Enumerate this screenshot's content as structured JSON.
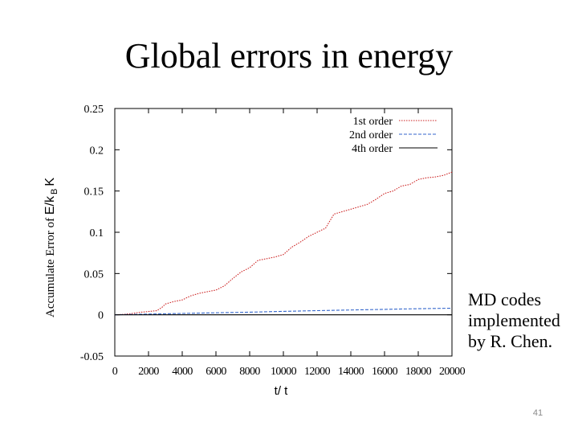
{
  "slide": {
    "title": "Global errors in energy",
    "caption_lines": [
      "MD codes",
      "implemented",
      "by R. Chen."
    ],
    "page_number": "41"
  },
  "chart_data": {
    "type": "line",
    "title": "",
    "xlabel": "t/ t",
    "ylabel_parts": [
      "Accumulate Error of ",
      "E/k",
      "B",
      "K"
    ],
    "xlim": [
      0,
      20000
    ],
    "ylim": [
      -0.05,
      0.25
    ],
    "xticks": [
      0,
      2000,
      4000,
      6000,
      8000,
      10000,
      12000,
      14000,
      16000,
      18000,
      20000
    ],
    "xtick_labels": [
      "0",
      "2000",
      "4000",
      "6000",
      "8000",
      "10000",
      "12000",
      "14000",
      "16000",
      "18000",
      "20000"
    ],
    "yticks": [
      -0.05,
      0,
      0.05,
      0.1,
      0.15,
      0.2,
      0.25
    ],
    "ytick_labels": [
      "-0.05",
      "0",
      "0.05",
      "0.1",
      "0.15",
      "0.2",
      "0.25"
    ],
    "legend_position": "top-right",
    "grid": false,
    "series": [
      {
        "name": "1st order",
        "color": "#cc2222",
        "dash": "dotted",
        "x": [
          0,
          500,
          1000,
          1500,
          2000,
          2500,
          2800,
          3000,
          3500,
          4000,
          4500,
          5000,
          5500,
          6000,
          6500,
          7000,
          7500,
          8000,
          8500,
          9000,
          9500,
          10000,
          10500,
          11000,
          11500,
          12000,
          12500,
          13000,
          13500,
          14000,
          14500,
          15000,
          15500,
          16000,
          16500,
          17000,
          17500,
          18000,
          18500,
          19000,
          19500,
          20000
        ],
        "y": [
          0,
          0.0005,
          0.0015,
          0.003,
          0.004,
          0.005,
          0.009,
          0.013,
          0.016,
          0.018,
          0.023,
          0.026,
          0.028,
          0.03,
          0.035,
          0.044,
          0.052,
          0.057,
          0.066,
          0.068,
          0.07,
          0.073,
          0.082,
          0.088,
          0.095,
          0.1,
          0.105,
          0.122,
          0.125,
          0.128,
          0.131,
          0.134,
          0.14,
          0.147,
          0.15,
          0.156,
          0.158,
          0.164,
          0.166,
          0.167,
          0.169,
          0.173
        ]
      },
      {
        "name": "2nd order",
        "color": "#3366cc",
        "dash": "dashed",
        "x": [
          0,
          2000,
          4000,
          6000,
          8000,
          10000,
          12000,
          14000,
          16000,
          18000,
          20000
        ],
        "y": [
          0,
          0.0008,
          0.0016,
          0.0024,
          0.0032,
          0.0042,
          0.005,
          0.0058,
          0.0066,
          0.0074,
          0.008
        ]
      },
      {
        "name": "4th order",
        "color": "#000000",
        "dash": "solid",
        "x": [
          0,
          5000,
          10000,
          15000,
          20000
        ],
        "y": [
          0,
          0,
          0,
          0,
          0
        ]
      }
    ]
  }
}
